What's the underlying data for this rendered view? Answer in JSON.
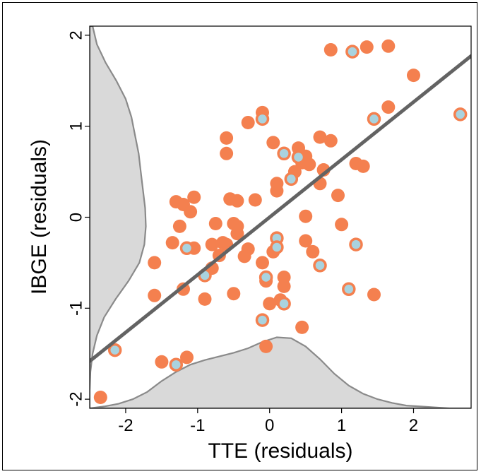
{
  "chart_data": {
    "type": "scatter",
    "title": "",
    "xlabel": "TTE (residuals)",
    "ylabel": "IBGE (residuals)",
    "xlim": [
      -2.5,
      2.8
    ],
    "ylim": [
      -2.1,
      2.1
    ],
    "xticks": [
      "-2",
      "-1",
      "0",
      "1",
      "2"
    ],
    "yticks": [
      "-2",
      "-1",
      "0",
      "1",
      "2"
    ],
    "grid": false,
    "colors": {
      "point_fill": "#f4804f",
      "highlight_fill": "#a9d3df",
      "fit_line": "#636363",
      "density_fill": "#d9d9d9",
      "density_stroke": "#8a8a8a"
    },
    "fit_line": {
      "slope": 0.633,
      "intercept": 0.0
    },
    "series": [
      {
        "style": "orange",
        "x": [
          0.85,
          1.35,
          1.65,
          2.0,
          1.65,
          -0.1,
          -0.3,
          -0.6,
          -0.6,
          0.05,
          0.4,
          0.45,
          0.5,
          0.35,
          0.55,
          0.7,
          0.85,
          0.75,
          1.2,
          1.3,
          0.7,
          0.1,
          0.1,
          0.95,
          -0.55,
          -0.45,
          -0.2,
          -1.3,
          -1.2,
          -1.05,
          -1.1,
          -0.75,
          -0.65,
          -0.8,
          -0.5,
          -0.45,
          -0.45,
          -0.7,
          -0.8,
          -0.3,
          -0.35,
          -1.25,
          -1.35,
          -1.05,
          -1.6,
          -0.6,
          0.5,
          0.5,
          0.6,
          1.0,
          -0.1,
          0.05,
          0.2,
          0.2,
          -1.6,
          -1.2,
          -0.9,
          -0.5,
          -0.05,
          0.15,
          0.45,
          1.45,
          -1.5,
          -1.15,
          -0.05,
          -2.35,
          0.0
        ],
        "y": [
          1.84,
          1.87,
          1.88,
          1.56,
          1.21,
          1.15,
          1.04,
          0.87,
          0.7,
          0.82,
          0.76,
          0.6,
          0.67,
          0.5,
          0.58,
          0.88,
          0.84,
          0.52,
          0.59,
          0.56,
          0.37,
          0.37,
          0.29,
          0.24,
          0.2,
          0.18,
          0.19,
          0.17,
          0.14,
          0.22,
          0.06,
          -0.07,
          -0.28,
          -0.3,
          -0.07,
          -0.1,
          -0.18,
          -0.42,
          -0.56,
          -0.35,
          -0.43,
          -0.1,
          -0.28,
          -0.34,
          -0.5,
          -0.3,
          0.01,
          -0.26,
          -0.38,
          -0.08,
          -0.5,
          -0.38,
          -0.66,
          -0.76,
          -0.86,
          -0.79,
          -0.9,
          -0.84,
          -0.7,
          -0.91,
          -1.21,
          -0.85,
          -1.59,
          -1.54,
          -1.42,
          -1.98,
          -0.95
        ]
      },
      {
        "style": "highlight",
        "x": [
          1.15,
          -0.1,
          1.45,
          2.65,
          0.2,
          0.4,
          0.3,
          0.1,
          0.1,
          -1.15,
          -0.9,
          -0.05,
          0.7,
          1.2,
          1.1,
          0.2,
          -0.1,
          -2.15,
          -1.3
        ],
        "y": [
          1.82,
          1.08,
          1.08,
          1.13,
          0.7,
          0.66,
          0.42,
          -0.23,
          -0.33,
          -0.34,
          -0.64,
          -0.66,
          -0.53,
          -0.3,
          -0.79,
          -0.95,
          -1.13,
          -1.46,
          -1.62
        ]
      }
    ],
    "x_density": {
      "x": [
        -2.5,
        -2.3,
        -2.1,
        -1.9,
        -1.7,
        -1.5,
        -1.3,
        -1.1,
        -0.9,
        -0.7,
        -0.5,
        -0.3,
        -0.1,
        0.1,
        0.3,
        0.5,
        0.7,
        0.9,
        1.1,
        1.3,
        1.5,
        1.7,
        1.9,
        2.1,
        2.3,
        2.5,
        2.8
      ],
      "y": [
        -2.1,
        -2.08,
        -2.05,
        -2.0,
        -1.92,
        -1.8,
        -1.7,
        -1.62,
        -1.57,
        -1.53,
        -1.49,
        -1.44,
        -1.37,
        -1.32,
        -1.33,
        -1.42,
        -1.56,
        -1.72,
        -1.85,
        -1.94,
        -2.0,
        -2.04,
        -2.07,
        -2.08,
        -2.09,
        -2.1,
        -2.1
      ]
    },
    "y_density": {
      "y": [
        2.1,
        1.9,
        1.7,
        1.5,
        1.3,
        1.1,
        0.9,
        0.7,
        0.5,
        0.3,
        0.1,
        -0.1,
        -0.3,
        -0.5,
        -0.7,
        -0.9,
        -1.1,
        -1.3,
        -1.5,
        -1.7,
        -1.9,
        -2.1
      ],
      "x": [
        -2.46,
        -2.4,
        -2.28,
        -2.13,
        -2.0,
        -1.92,
        -1.87,
        -1.82,
        -1.79,
        -1.76,
        -1.73,
        -1.72,
        -1.74,
        -1.81,
        -1.96,
        -2.14,
        -2.3,
        -2.4,
        -2.46,
        -2.49,
        -2.5,
        -2.5
      ]
    }
  }
}
